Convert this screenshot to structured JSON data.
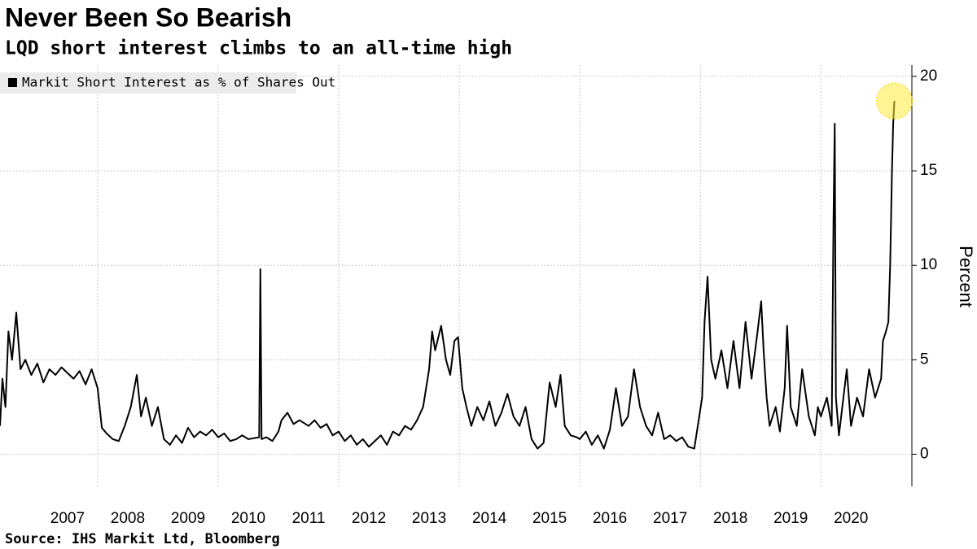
{
  "chart_data": {
    "type": "line",
    "title": "Never Been So Bearish",
    "subtitle": "LQD short interest climbs to an all-time high",
    "source": "Source: IHS Markit Ltd, Bloomberg",
    "y_axis_label": "Percent",
    "legend": "top-left",
    "grid": true,
    "xlim": [
      2006.38,
      2021.51
    ],
    "xticks": [
      2007,
      2008,
      2009,
      2010,
      2011,
      2012,
      2013,
      2014,
      2015,
      2016,
      2017,
      2018,
      2019,
      2020
    ],
    "ylim": [
      -1.7,
      20.6
    ],
    "yticks": [
      0,
      5,
      10,
      15,
      20
    ],
    "x": [
      2006.38,
      2006.42,
      2006.47,
      2006.52,
      2006.58,
      2006.65,
      2006.72,
      2006.8,
      2006.9,
      2007.0,
      2007.1,
      2007.2,
      2007.3,
      2007.4,
      2007.5,
      2007.6,
      2007.7,
      2007.8,
      2007.9,
      2008.0,
      2008.07,
      2008.15,
      2008.25,
      2008.35,
      2008.45,
      2008.55,
      2008.65,
      2008.72,
      2008.8,
      2008.9,
      2009.0,
      2009.1,
      2009.2,
      2009.3,
      2009.4,
      2009.5,
      2009.6,
      2009.7,
      2009.8,
      2009.9,
      2010.0,
      2010.1,
      2010.2,
      2010.3,
      2010.4,
      2010.5,
      2010.68,
      2010.7,
      2010.72,
      2010.8,
      2010.9,
      2011.0,
      2011.05,
      2011.15,
      2011.25,
      2011.35,
      2011.5,
      2011.6,
      2011.7,
      2011.8,
      2011.9,
      2012.0,
      2012.1,
      2012.2,
      2012.3,
      2012.4,
      2012.5,
      2012.6,
      2012.7,
      2012.8,
      2012.9,
      2013.0,
      2013.1,
      2013.2,
      2013.3,
      2013.4,
      2013.5,
      2013.55,
      2013.6,
      2013.7,
      2013.78,
      2013.85,
      2013.92,
      2013.98,
      2014.05,
      2014.12,
      2014.2,
      2014.3,
      2014.4,
      2014.5,
      2014.6,
      2014.7,
      2014.8,
      2014.9,
      2015.0,
      2015.1,
      2015.2,
      2015.3,
      2015.4,
      2015.5,
      2015.6,
      2015.68,
      2015.75,
      2015.85,
      2015.95,
      2016.0,
      2016.1,
      2016.2,
      2016.3,
      2016.4,
      2016.5,
      2016.6,
      2016.7,
      2016.8,
      2016.9,
      2017.0,
      2017.1,
      2017.2,
      2017.3,
      2017.4,
      2017.5,
      2017.6,
      2017.7,
      2017.8,
      2017.9,
      2018.03,
      2018.07,
      2018.12,
      2018.18,
      2018.25,
      2018.35,
      2018.45,
      2018.55,
      2018.65,
      2018.75,
      2018.85,
      2018.95,
      2019.01,
      2019.05,
      2019.1,
      2019.15,
      2019.25,
      2019.32,
      2019.4,
      2019.44,
      2019.5,
      2019.6,
      2019.69,
      2019.8,
      2019.9,
      2019.95,
      2020.0,
      2020.1,
      2020.18,
      2020.21,
      2020.23,
      2020.25,
      2020.3,
      2020.43,
      2020.5,
      2020.6,
      2020.7,
      2020.8,
      2020.9,
      2021.0,
      2021.03,
      2021.08,
      2021.12,
      2021.15,
      2021.18,
      2021.2,
      2021.22
    ],
    "series": [
      {
        "name": "Markit Short Interest as % of Shares Out",
        "color": "#000000",
        "values": [
          1.5,
          4.0,
          2.5,
          6.5,
          5.0,
          7.5,
          4.5,
          5.0,
          4.2,
          4.8,
          3.8,
          4.5,
          4.2,
          4.6,
          4.3,
          4.0,
          4.4,
          3.7,
          4.5,
          3.5,
          1.4,
          1.1,
          0.8,
          0.7,
          1.5,
          2.5,
          4.2,
          2.0,
          3.0,
          1.5,
          2.5,
          0.8,
          0.5,
          1.0,
          0.6,
          1.4,
          0.9,
          1.2,
          1.0,
          1.3,
          0.9,
          1.1,
          0.7,
          0.8,
          1.0,
          0.8,
          0.9,
          9.8,
          0.8,
          0.9,
          0.7,
          1.2,
          1.8,
          2.2,
          1.6,
          1.8,
          1.5,
          1.8,
          1.4,
          1.6,
          1.0,
          1.2,
          0.7,
          1.0,
          0.5,
          0.8,
          0.4,
          0.7,
          1.0,
          0.5,
          1.2,
          1.0,
          1.5,
          1.3,
          1.8,
          2.5,
          4.5,
          6.5,
          5.5,
          6.8,
          5.0,
          4.2,
          6.0,
          6.2,
          3.5,
          2.5,
          1.5,
          2.5,
          1.8,
          2.8,
          1.5,
          2.2,
          3.2,
          2.0,
          1.5,
          2.5,
          0.8,
          0.3,
          0.6,
          3.8,
          2.5,
          4.2,
          1.5,
          1.0,
          0.9,
          0.8,
          1.2,
          0.5,
          1.0,
          0.3,
          1.3,
          3.5,
          1.5,
          2.0,
          4.5,
          2.5,
          1.5,
          1.0,
          2.2,
          0.8,
          1.0,
          0.7,
          0.9,
          0.4,
          0.3,
          3.0,
          7.0,
          9.4,
          5.0,
          4.0,
          5.5,
          3.5,
          6.0,
          3.5,
          7.0,
          4.0,
          6.5,
          8.1,
          5.5,
          3.0,
          1.5,
          2.5,
          1.2,
          3.5,
          6.8,
          2.5,
          1.5,
          4.5,
          2.0,
          1.0,
          2.5,
          2.0,
          3.0,
          1.5,
          12.5,
          17.5,
          3.0,
          1.0,
          4.5,
          1.5,
          3.0,
          2.0,
          4.5,
          3.0,
          4.0,
          6.0,
          6.5,
          7.0,
          10.0,
          15.0,
          17.5,
          18.7
        ]
      }
    ]
  }
}
